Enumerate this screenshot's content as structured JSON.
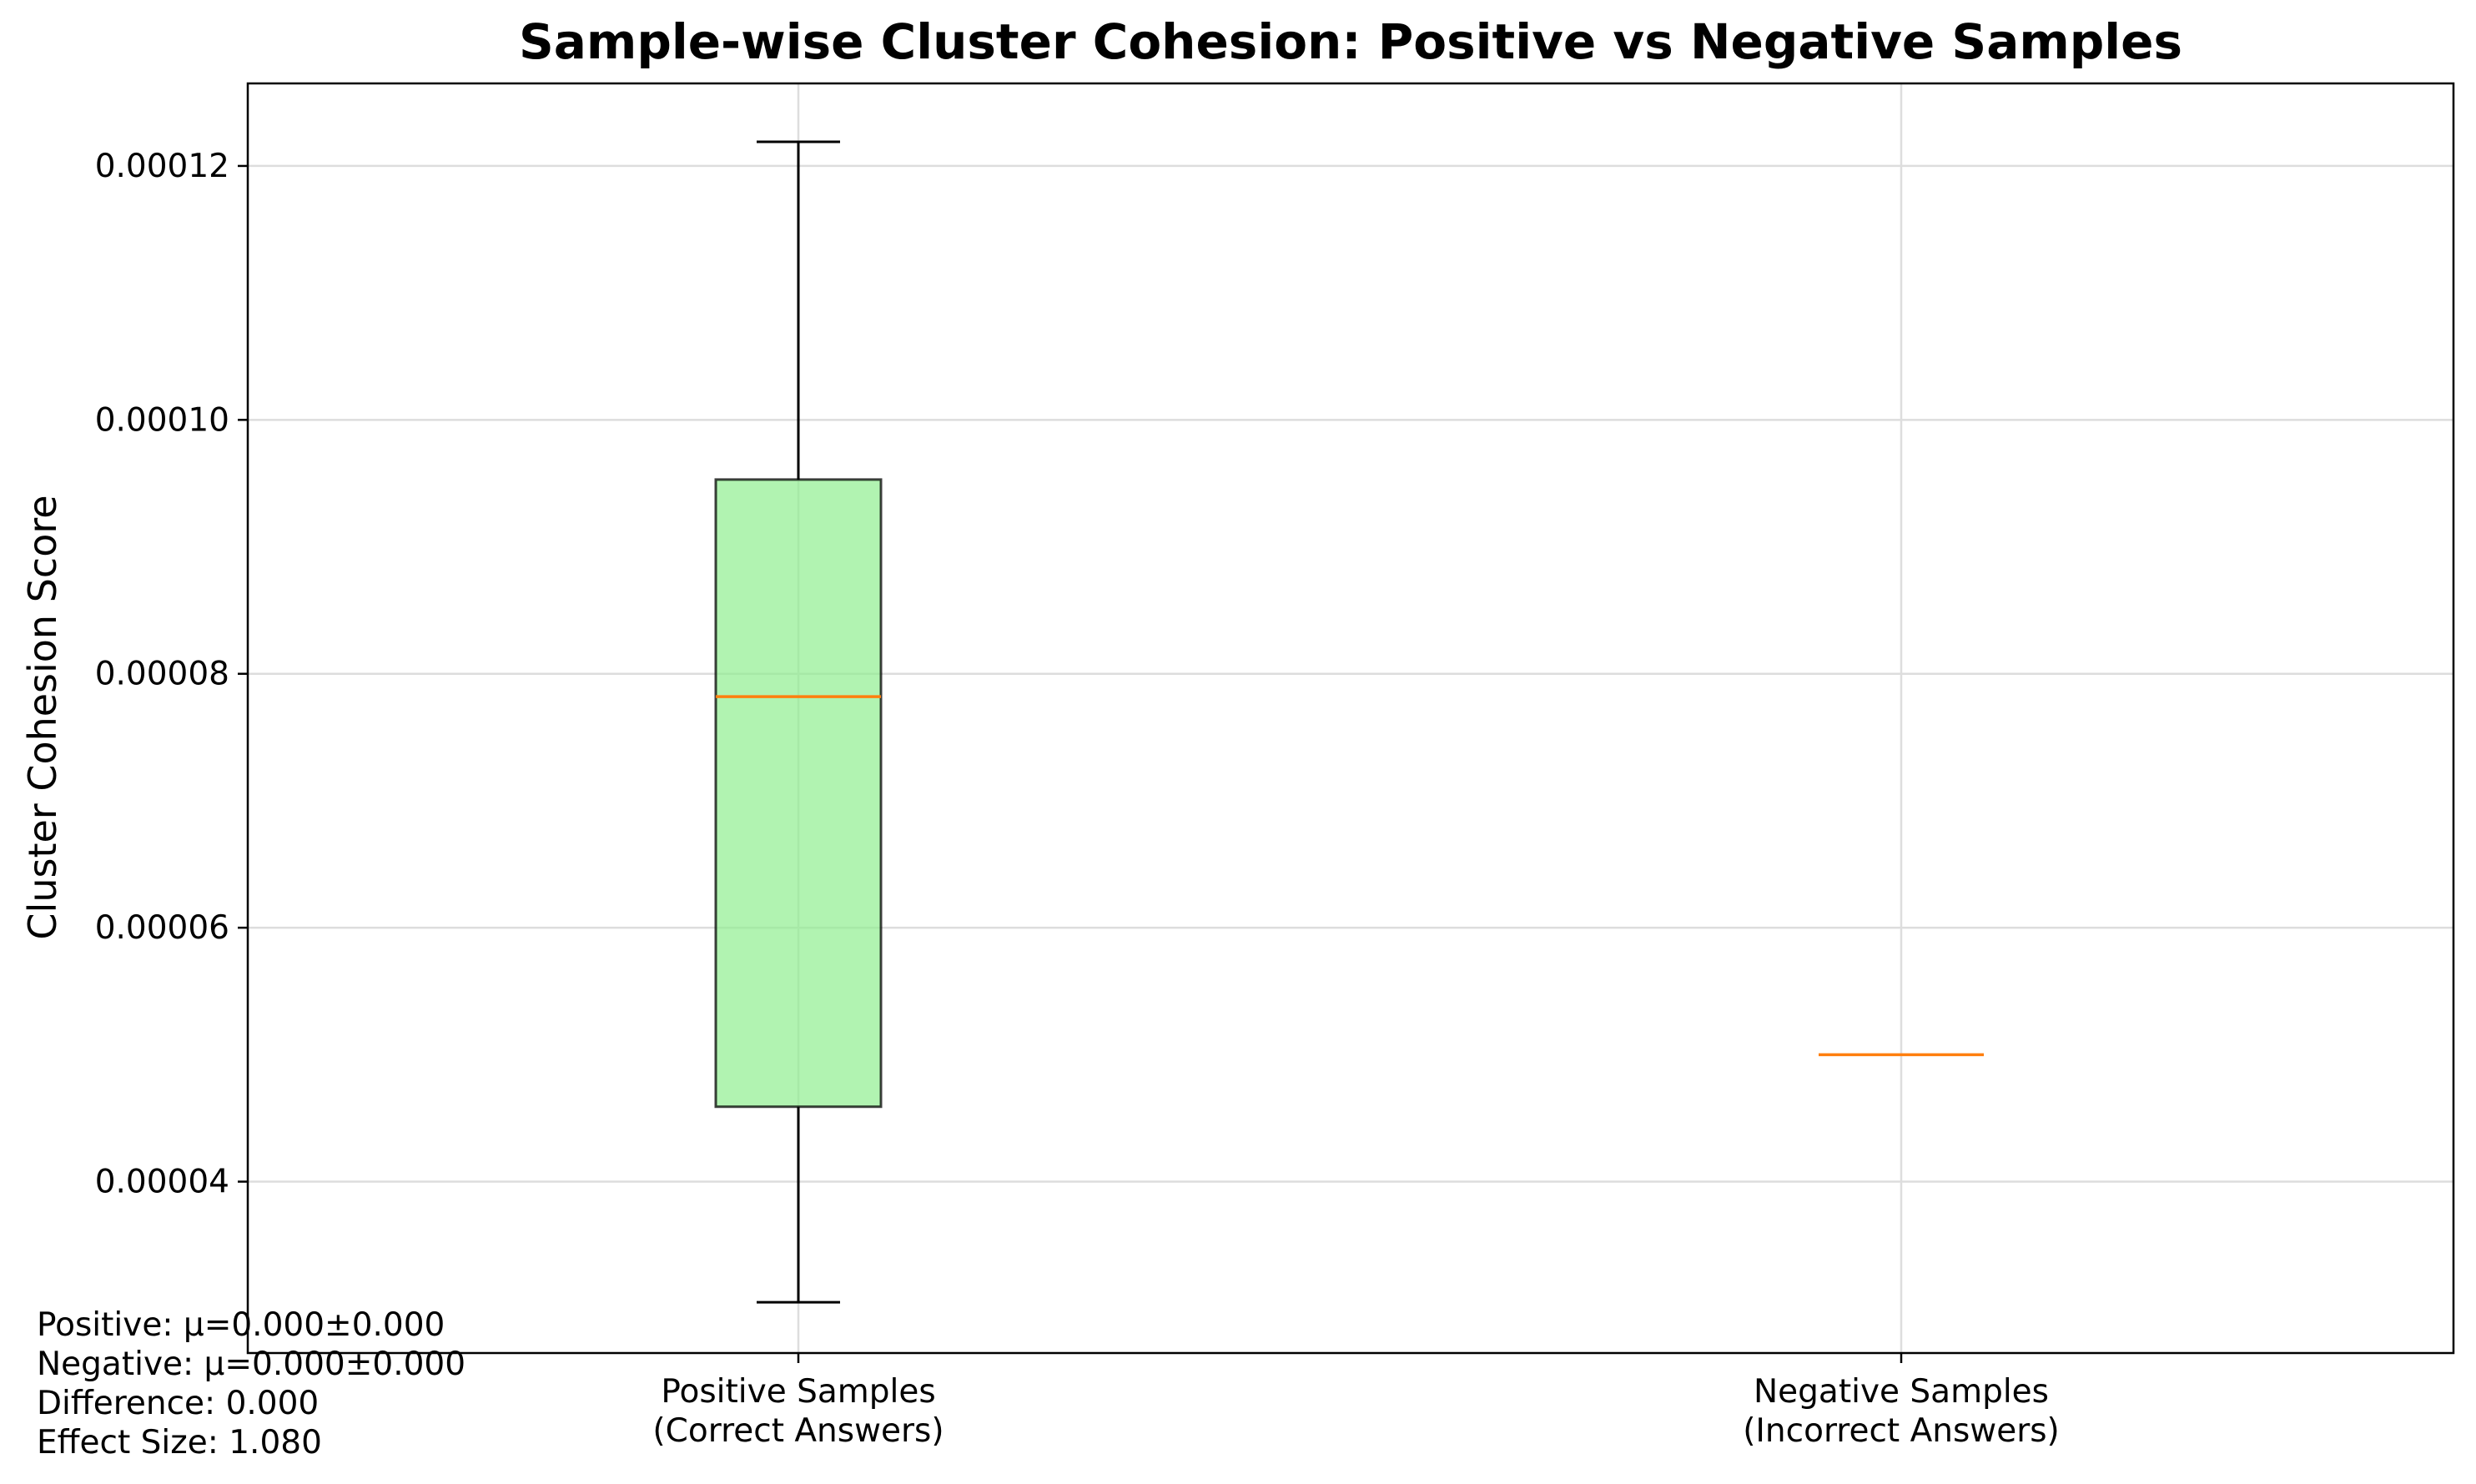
{
  "chart_data": {
    "type": "box",
    "title": "Sample-wise Cluster Cohesion: Positive vs Negative Samples",
    "xlabel": "",
    "ylabel": "Cluster Cohesion Score",
    "ylim": [
      2.65e-05,
      0.0001265
    ],
    "yticks": [
      "0.00004",
      "0.00006",
      "0.00008",
      "0.00010",
      "0.00012"
    ],
    "ytick_values": [
      4e-05,
      6e-05,
      8e-05,
      0.0001,
      0.00012
    ],
    "grid": true,
    "categories": [
      [
        "Positive Samples",
        "(Correct Answers)"
      ],
      [
        "Negative Samples",
        "(Incorrect Answers)"
      ]
    ],
    "series": [
      {
        "whisker_low": 3.05e-05,
        "q1": 4.59e-05,
        "median": 7.82e-05,
        "q3": 9.53e-05,
        "whisker_high": 0.0001219,
        "fill": "#90ee90",
        "median_color": "#ff7f0e"
      },
      {
        "whisker_low": 5e-05,
        "q1": 5e-05,
        "median": 5e-05,
        "q3": 5e-05,
        "whisker_high": 5e-05,
        "fill": "#f08080",
        "median_color": "#ff7f0e"
      }
    ]
  },
  "stats": {
    "positive": "Positive: μ=0.000±0.000",
    "negative": "Negative: μ=0.000±0.000",
    "difference": "Difference: 0.000",
    "effect_size": "Effect Size: 1.080"
  }
}
